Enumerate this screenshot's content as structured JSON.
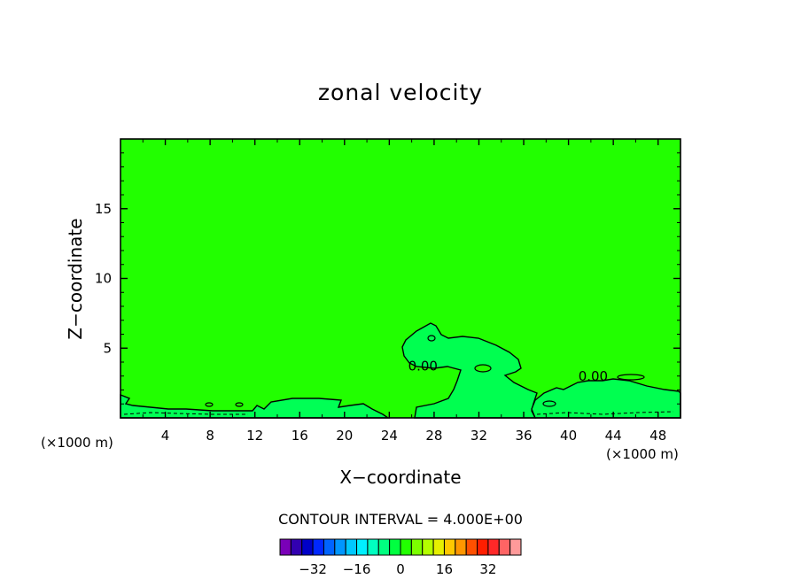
{
  "chart_data": {
    "type": "heatmap",
    "title": "zonal velocity",
    "xlabel": "X−coordinate",
    "ylabel": "Z−coordinate",
    "x_unit_left": "(×1000 m)",
    "x_unit_right": "(×1000 m)",
    "xlim": [
      0,
      50
    ],
    "ylim": [
      0,
      20
    ],
    "x_ticks": [
      4,
      8,
      12,
      16,
      20,
      24,
      28,
      32,
      36,
      40,
      44,
      48
    ],
    "y_ticks": [
      5,
      10,
      15
    ],
    "contour_interval_label": "CONTOUR INTERVAL = 4.000E+00",
    "contour_labels": [
      {
        "text": "0.00",
        "x": 27,
        "y": 3.7
      },
      {
        "text": "0.00",
        "x": 42.2,
        "y": 3.0
      }
    ],
    "regions": [
      {
        "name": "background",
        "value_range": "0 to 4",
        "color": "#22ff00"
      },
      {
        "name": "positive-cell-center",
        "value_range": "4 to 8",
        "color": "#00ff50"
      },
      {
        "name": "positive-cell-right",
        "value_range": "4 to 8",
        "color": "#00ff50"
      },
      {
        "name": "negative-band-bottom",
        "value_range": "-4 to 0",
        "color": "#00ff55"
      }
    ],
    "colorbar": {
      "colors": [
        "#7a00b8",
        "#3200b0",
        "#0000c8",
        "#0028ff",
        "#0064ff",
        "#0096ff",
        "#00c8ff",
        "#00f0ff",
        "#00ffc0",
        "#00ff80",
        "#00ff40",
        "#22ff00",
        "#7cff00",
        "#b4ff00",
        "#e6f000",
        "#ffc800",
        "#ff9600",
        "#ff5000",
        "#ff1e00",
        "#ff2828",
        "#ff6464",
        "#ff9a9a"
      ],
      "range": [
        -44,
        44
      ],
      "tick_values": [
        -32,
        -16,
        0,
        16,
        32
      ],
      "tick_labels": [
        "−32",
        "−16",
        "0",
        "16",
        "32"
      ]
    }
  }
}
